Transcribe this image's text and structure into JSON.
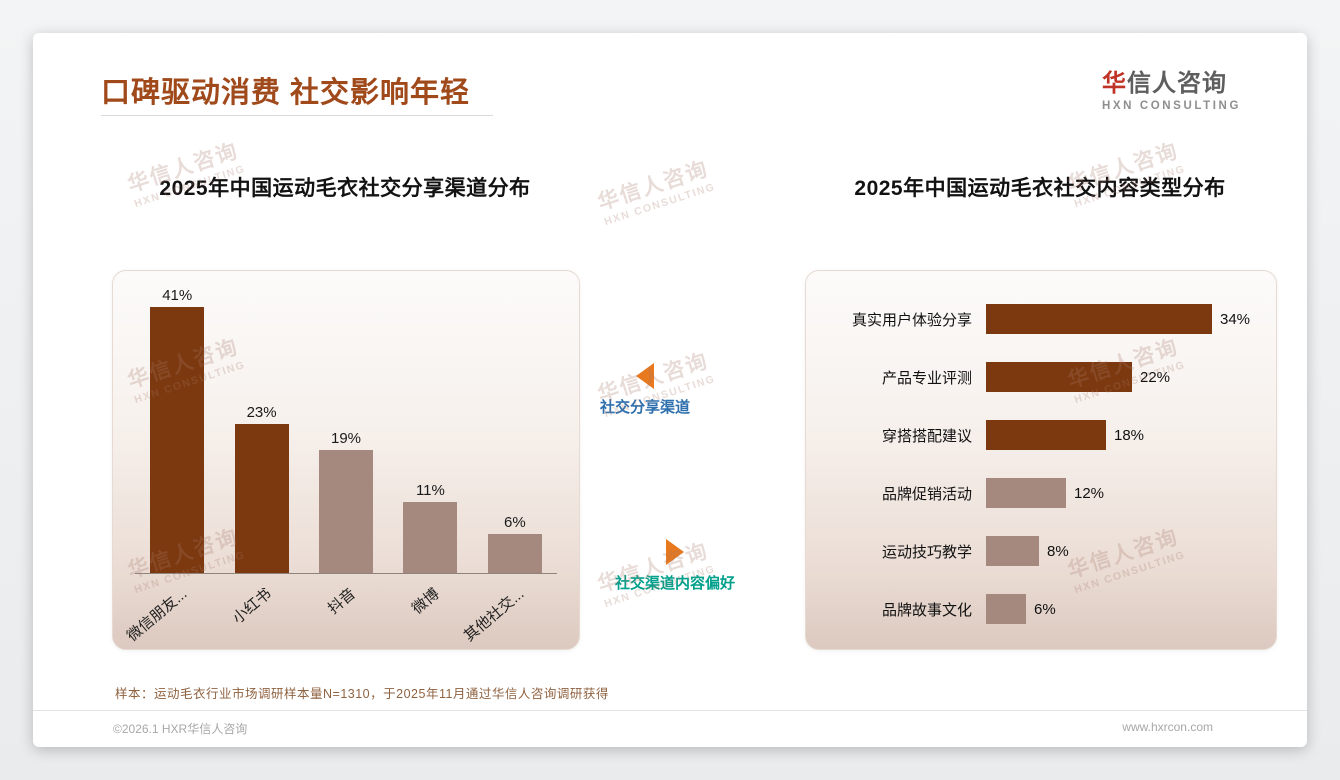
{
  "page": {
    "title": "口碑驱动消费 社交影响年轻",
    "logo": {
      "accent": "华",
      "rest": "信人咨询",
      "sub": "HXN CONSULTING"
    },
    "watermark": {
      "line1": "华信人咨询",
      "line2": "HXN CONSULTING"
    },
    "annotations": [
      {
        "label": "社交分享渠道",
        "color": "#2E6FAE",
        "direction": "left"
      },
      {
        "label": "社交渠道内容偏好",
        "color": "#00A08C",
        "direction": "right"
      }
    ],
    "footer": {
      "sample_note": "样本：运动毛衣行业市场调研样本量N=1310，于2025年11月通过华信人咨询调研获得",
      "copyright": "©2026.1 HXR华信人咨询",
      "website": "www.hxrcon.com"
    },
    "colors": {
      "title": "#A0491B",
      "bar_dark": "#7C390F",
      "bar_light": "#A5887E",
      "arrow_orange": "#E8791E",
      "logo_red": "#C03428"
    }
  },
  "chart_data": [
    {
      "type": "bar",
      "orientation": "vertical",
      "title": "2025年中国运动毛衣社交分享渠道分布",
      "categories": [
        "微信朋友...",
        "小红书",
        "抖音",
        "微博",
        "其他社交..."
      ],
      "values": [
        41,
        23,
        19,
        11,
        6
      ],
      "unit": "%",
      "bar_colors": [
        "#7C390F",
        "#7C390F",
        "#A5887E",
        "#A5887E",
        "#A5887E"
      ],
      "xlabel": "",
      "ylabel": "",
      "ylim": [
        0,
        45
      ],
      "grid": false,
      "legend": false
    },
    {
      "type": "bar",
      "orientation": "horizontal",
      "title": "2025年中国运动毛衣社交内容类型分布",
      "categories": [
        "真实用户体验分享",
        "产品专业评测",
        "穿搭搭配建议",
        "品牌促销活动",
        "运动技巧教学",
        "品牌故事文化"
      ],
      "values": [
        34,
        22,
        18,
        12,
        8,
        6
      ],
      "unit": "%",
      "bar_colors": [
        "#7C390F",
        "#7C390F",
        "#7C390F",
        "#A5887E",
        "#A5887E",
        "#A5887E"
      ],
      "xlabel": "",
      "ylabel": "",
      "xlim": [
        0,
        40
      ],
      "grid": false,
      "legend": false
    }
  ]
}
